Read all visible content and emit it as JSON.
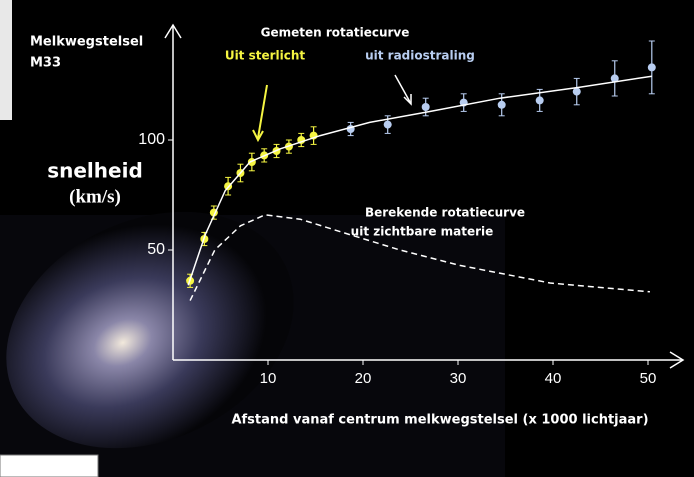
{
  "chart_data": {
    "type": "line",
    "title": "Melkwegstelsel",
    "subtitle": "M33",
    "ylabel": [
      "snelheid",
      "(km/s)"
    ],
    "xlabel": "Afstand vanaf centrum melkwegstelsel (x 1000 lichtjaar)",
    "annotations": [
      "Gemeten rotatiecurve",
      "Berekende rotatiecurve",
      "uit zichtbare materie"
    ],
    "xlim": [
      0,
      53
    ],
    "ylim": [
      0,
      150
    ],
    "xticks": [
      10,
      20,
      30,
      40,
      50
    ],
    "yticks": [
      50,
      100
    ],
    "series": [
      {
        "name": "Uit sterlicht",
        "color": "#f5f542",
        "style": "points",
        "x": [
          1.8,
          3.3,
          4.3,
          5.8,
          7.1,
          8.3,
          9.6,
          10.9,
          12.2,
          13.5,
          14.8
        ],
        "values": [
          36,
          55,
          67,
          79,
          85,
          90,
          93,
          95,
          97,
          100,
          102
        ],
        "errors": [
          3,
          3,
          3,
          4,
          4,
          4,
          3,
          3,
          3,
          3,
          4
        ]
      },
      {
        "name": "uit radiostraling",
        "color": "#b8cdf0",
        "style": "points",
        "x": [
          18.7,
          22.6,
          26.6,
          30.6,
          34.6,
          38.6,
          42.5,
          46.5,
          50.4
        ],
        "values": [
          105,
          107,
          115,
          117,
          116,
          118,
          122,
          128,
          133
        ],
        "errors": [
          3,
          4,
          4,
          4,
          5,
          5,
          6,
          8,
          12
        ]
      },
      {
        "color": "#ffffff",
        "style": "solid",
        "x": [
          1.6,
          3.4,
          5.5,
          8.1,
          11.3,
          15.5,
          20.7,
          27.1,
          34.4,
          42.8,
          50.4
        ],
        "values": [
          34,
          57,
          77,
          90,
          96,
          102,
          108,
          113,
          119,
          124,
          129
        ]
      },
      {
        "color": "#ffffff",
        "style": "dashed",
        "x": [
          1.8,
          4.4,
          7.1,
          9.7,
          13.4,
          18.6,
          23.9,
          30.2,
          39.7,
          50.2
        ],
        "values": [
          27,
          50,
          61,
          66,
          64,
          57,
          50,
          43,
          35,
          31
        ]
      }
    ]
  }
}
